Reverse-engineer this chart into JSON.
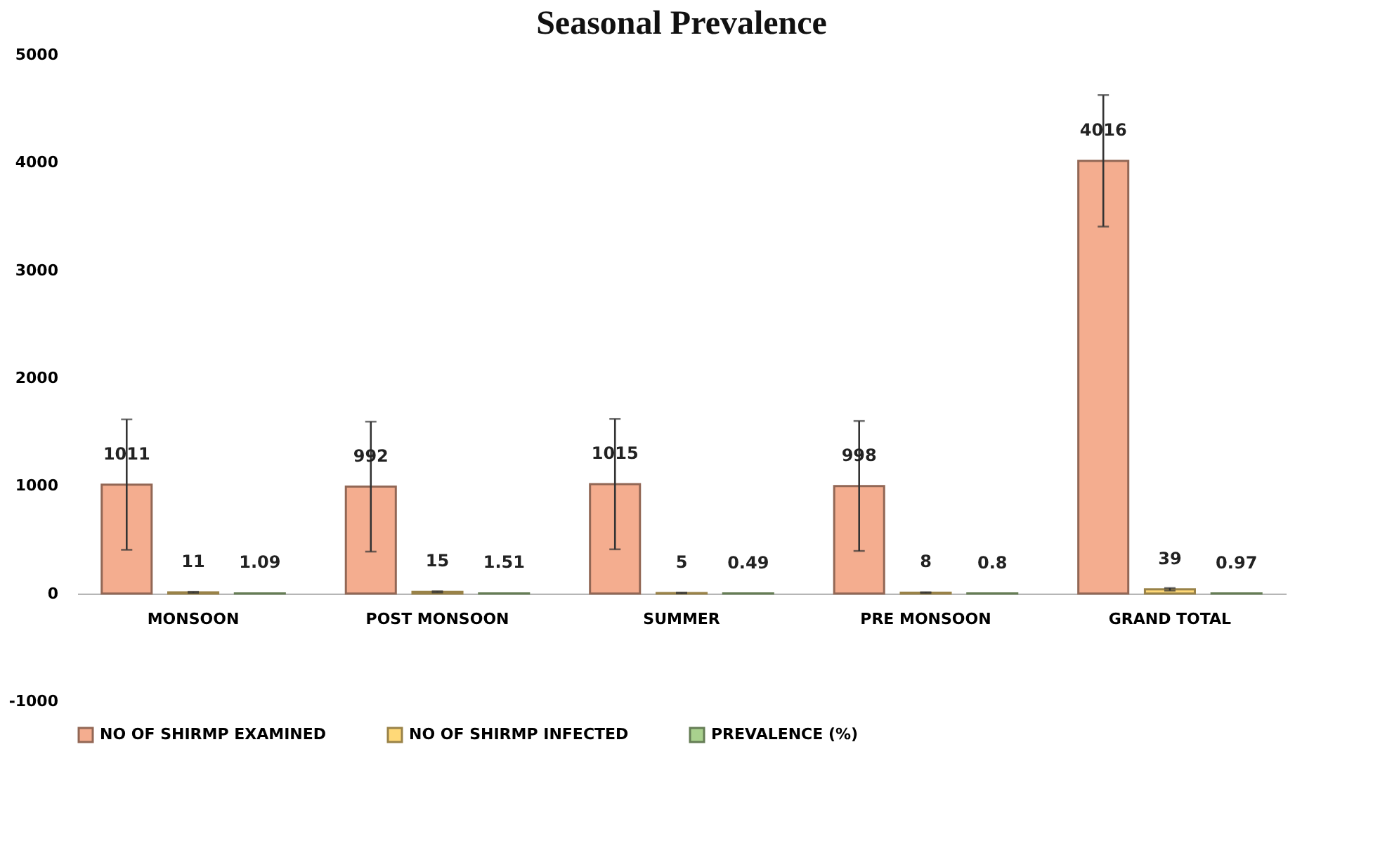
{
  "chart_data": {
    "type": "bar",
    "title": "Seasonal Prevalence",
    "categories": [
      "MONSOON",
      "POST MONSOON",
      "SUMMER",
      "PRE MONSOON",
      "GRAND TOTAL"
    ],
    "series": [
      {
        "name": "NO OF SHIRMP EXAMINED",
        "color": "#f4ad8f",
        "values": [
          1011,
          992,
          1015,
          998,
          4016
        ],
        "errors": [
          605,
          603,
          605,
          603,
          610
        ]
      },
      {
        "name": "NO OF SHIRMP INFECTED",
        "color": "#ffd978",
        "values": [
          11,
          15,
          5,
          8,
          39
        ],
        "errors": [
          5,
          5,
          3,
          4,
          12
        ]
      },
      {
        "name": "PREVALENCE (%)",
        "color": "#a9d18e",
        "values": [
          1.09,
          1.51,
          0.49,
          0.8,
          0.97
        ]
      }
    ],
    "ylim": [
      -1000,
      5000
    ],
    "yticks": [
      -1000,
      0,
      1000,
      2000,
      3000,
      4000,
      5000
    ],
    "data_labels": true,
    "grid": false,
    "legend": "bottom"
  }
}
